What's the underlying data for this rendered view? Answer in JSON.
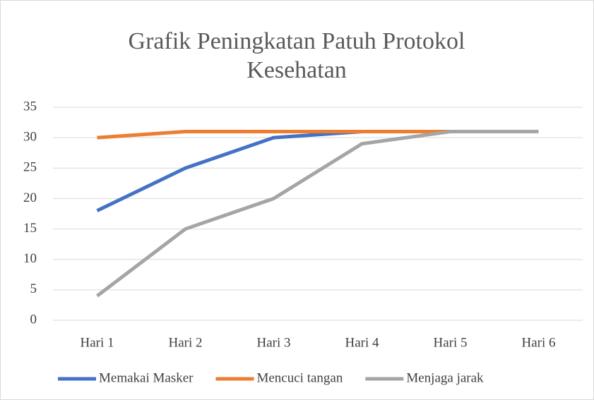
{
  "chart_data": {
    "type": "line",
    "title": "Grafik Peningkatan Patuh Protokol Kesehatan",
    "categories": [
      "Hari 1",
      "Hari 2",
      "Hari 3",
      "Hari 4",
      "Hari 5",
      "Hari 6"
    ],
    "series": [
      {
        "name": "Memakai Masker",
        "color": "#4472c4",
        "values": [
          18,
          25,
          30,
          31,
          31,
          31
        ]
      },
      {
        "name": "Mencuci tangan",
        "color": "#ed7d31",
        "values": [
          30,
          31,
          31,
          31,
          31,
          31
        ]
      },
      {
        "name": "Menjaga jarak",
        "color": "#a5a5a5",
        "values": [
          4,
          15,
          20,
          29,
          31,
          31
        ]
      }
    ],
    "ylim": [
      0,
      35
    ],
    "yticks": [
      0,
      5,
      10,
      15,
      20,
      25,
      30,
      35
    ],
    "grid": true,
    "legend": "bottom"
  }
}
